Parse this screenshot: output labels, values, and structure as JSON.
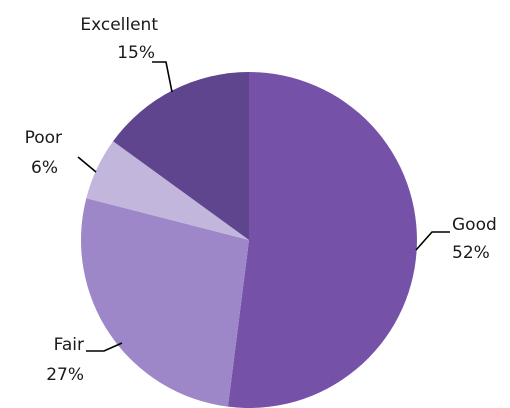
{
  "chart_data": {
    "type": "pie",
    "slices": [
      {
        "label": "Good",
        "value": 52,
        "value_label": "52%",
        "color": "#7552a8"
      },
      {
        "label": "Fair",
        "value": 27,
        "value_label": "27%",
        "color": "#9e87c8"
      },
      {
        "label": "Poor",
        "value": 6,
        "value_label": "6%",
        "color": "#c3b6dc"
      },
      {
        "label": "Excellent",
        "value": 15,
        "value_label": "15%",
        "color": "#5f448e"
      }
    ],
    "start_angle_deg": 0,
    "direction": "clockwise",
    "legend": "none"
  }
}
